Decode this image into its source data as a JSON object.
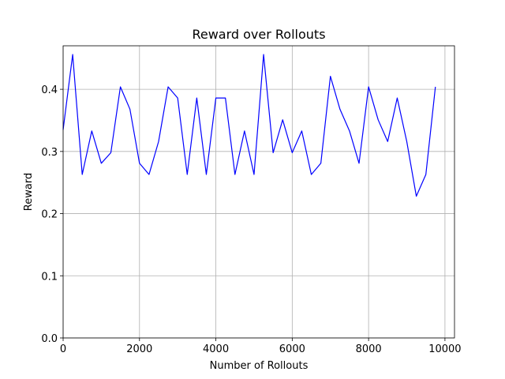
{
  "chart_data": {
    "type": "line",
    "title": "Reward over Rollouts",
    "xlabel": "Number of Rollouts",
    "ylabel": "Reward",
    "xlim": [
      0,
      10250
    ],
    "ylim": [
      0,
      0.47
    ],
    "grid": true,
    "x_ticks": [
      0,
      2000,
      4000,
      6000,
      8000,
      10000
    ],
    "y_ticks": [
      0.0,
      0.1,
      0.2,
      0.3,
      0.4
    ],
    "x_tick_labels": [
      "0",
      "2000",
      "4000",
      "6000",
      "8000",
      "10000"
    ],
    "y_tick_labels": [
      "0.0",
      "0.1",
      "0.2",
      "0.3",
      "0.4"
    ],
    "series": [
      {
        "color": "#0000ff",
        "x": [
          0,
          250,
          500,
          750,
          1000,
          1250,
          1500,
          1750,
          2000,
          2250,
          2500,
          2750,
          3000,
          3250,
          3500,
          3750,
          4000,
          4250,
          4500,
          4750,
          5000,
          5250,
          5500,
          5750,
          6000,
          6250,
          6500,
          6750,
          7000,
          7250,
          7500,
          7750,
          8000,
          8250,
          8500,
          8750,
          9000,
          9250,
          9500,
          9750
        ],
        "y": [
          0.335,
          0.456,
          0.263,
          0.333,
          0.281,
          0.298,
          0.404,
          0.368,
          0.281,
          0.263,
          0.316,
          0.404,
          0.386,
          0.263,
          0.386,
          0.263,
          0.386,
          0.386,
          0.263,
          0.333,
          0.263,
          0.456,
          0.298,
          0.351,
          0.298,
          0.333,
          0.263,
          0.281,
          0.421,
          0.368,
          0.333,
          0.281,
          0.404,
          0.351,
          0.316,
          0.386,
          0.316,
          0.228,
          0.263,
          0.404
        ]
      }
    ]
  }
}
